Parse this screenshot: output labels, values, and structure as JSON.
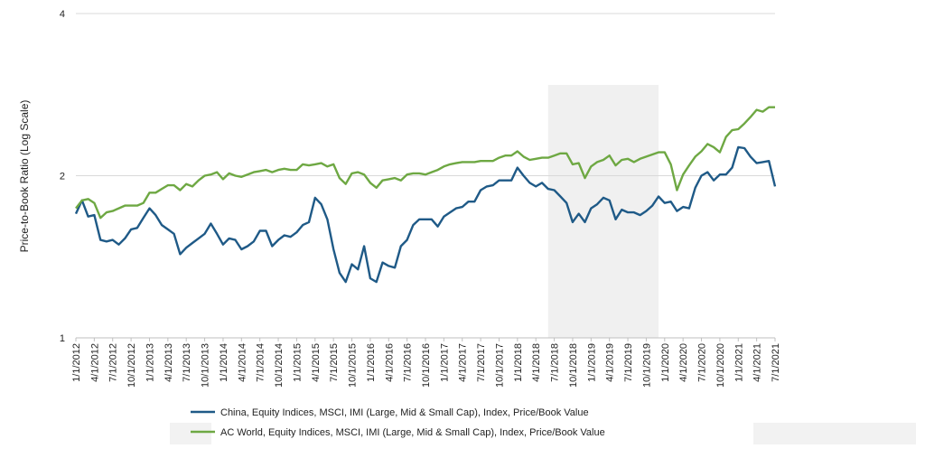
{
  "chart_data": {
    "type": "line",
    "title": "",
    "ylabel": "Price-to-Book Ratio (Log Scale)",
    "xlabel": "",
    "y_scale": "log",
    "ylim": [
      1,
      4
    ],
    "y_ticks": [
      1,
      2,
      4
    ],
    "y_tick_labels": [
      "1",
      "2",
      "4"
    ],
    "grid": "horizontal",
    "x_tick_labels": [
      "1/1/2012",
      "4/1/2012",
      "7/1/2012",
      "10/1/2012",
      "1/1/2013",
      "4/1/2013",
      "7/1/2013",
      "10/1/2013",
      "1/1/2014",
      "4/1/2014",
      "7/1/2014",
      "10/1/2014",
      "1/1/2015",
      "4/1/2015",
      "7/1/2015",
      "10/1/2015",
      "1/1/2016",
      "4/1/2016",
      "7/1/2016",
      "10/1/2016",
      "1/1/2017",
      "4/1/2017",
      "7/1/2017",
      "10/1/2017",
      "1/1/2018",
      "4/1/2018",
      "7/1/2018",
      "10/1/2018",
      "1/1/2019",
      "4/1/2019",
      "7/1/2019",
      "10/1/2019",
      "1/1/2020",
      "4/1/2020",
      "7/1/2020",
      "10/1/2020",
      "1/1/2021",
      "4/1/2021",
      "7/1/2021"
    ],
    "x_start": "2012-01",
    "x_end": "2021-07",
    "shaded_period": [
      "2018-06",
      "2019-12"
    ],
    "legend_position": "bottom",
    "series": [
      {
        "name": "China, Equity Indices, MSCI, IMI (Large, Mid & Small Cap), Index, Price/Book Value",
        "color": "#1f5a87",
        "values": [
          1.7,
          1.8,
          1.68,
          1.69,
          1.52,
          1.51,
          1.52,
          1.49,
          1.53,
          1.59,
          1.6,
          1.67,
          1.74,
          1.69,
          1.62,
          1.59,
          1.56,
          1.43,
          1.47,
          1.5,
          1.53,
          1.56,
          1.63,
          1.56,
          1.49,
          1.53,
          1.52,
          1.46,
          1.48,
          1.51,
          1.58,
          1.58,
          1.48,
          1.52,
          1.55,
          1.54,
          1.57,
          1.62,
          1.64,
          1.82,
          1.77,
          1.66,
          1.46,
          1.32,
          1.27,
          1.37,
          1.34,
          1.48,
          1.29,
          1.27,
          1.38,
          1.36,
          1.35,
          1.48,
          1.52,
          1.62,
          1.66,
          1.66,
          1.66,
          1.61,
          1.68,
          1.71,
          1.74,
          1.75,
          1.79,
          1.79,
          1.88,
          1.91,
          1.92,
          1.96,
          1.96,
          1.96,
          2.07,
          2.0,
          1.94,
          1.91,
          1.94,
          1.89,
          1.88,
          1.83,
          1.78,
          1.64,
          1.7,
          1.64,
          1.74,
          1.77,
          1.82,
          1.8,
          1.66,
          1.73,
          1.71,
          1.71,
          1.69,
          1.72,
          1.76,
          1.83,
          1.78,
          1.79,
          1.72,
          1.75,
          1.74,
          1.9,
          2.0,
          2.03,
          1.96,
          2.01,
          2.01,
          2.07,
          2.26,
          2.25,
          2.17,
          2.11,
          2.12,
          2.13,
          1.91
        ]
      },
      {
        "name": "AC World, Equity Indices, MSCI, IMI (Large, Mid & Small Cap), Index, Price/Book Value",
        "color": "#6ea843",
        "values": [
          1.74,
          1.8,
          1.81,
          1.78,
          1.67,
          1.71,
          1.72,
          1.74,
          1.76,
          1.76,
          1.76,
          1.78,
          1.86,
          1.86,
          1.89,
          1.92,
          1.92,
          1.88,
          1.93,
          1.91,
          1.96,
          2.0,
          2.01,
          2.03,
          1.97,
          2.02,
          2.0,
          1.99,
          2.01,
          2.03,
          2.04,
          2.05,
          2.03,
          2.05,
          2.06,
          2.05,
          2.05,
          2.1,
          2.09,
          2.1,
          2.11,
          2.08,
          2.1,
          1.98,
          1.93,
          2.02,
          2.03,
          2.01,
          1.94,
          1.9,
          1.96,
          1.97,
          1.98,
          1.96,
          2.01,
          2.02,
          2.02,
          2.01,
          2.03,
          2.05,
          2.08,
          2.1,
          2.11,
          2.12,
          2.12,
          2.12,
          2.13,
          2.13,
          2.13,
          2.16,
          2.18,
          2.18,
          2.22,
          2.17,
          2.14,
          2.15,
          2.16,
          2.16,
          2.18,
          2.2,
          2.2,
          2.1,
          2.11,
          1.98,
          2.08,
          2.12,
          2.14,
          2.18,
          2.09,
          2.14,
          2.15,
          2.12,
          2.15,
          2.17,
          2.19,
          2.21,
          2.21,
          2.1,
          1.88,
          2.01,
          2.09,
          2.17,
          2.22,
          2.29,
          2.26,
          2.21,
          2.36,
          2.43,
          2.44,
          2.5,
          2.57,
          2.65,
          2.63,
          2.68,
          2.68
        ]
      }
    ]
  }
}
